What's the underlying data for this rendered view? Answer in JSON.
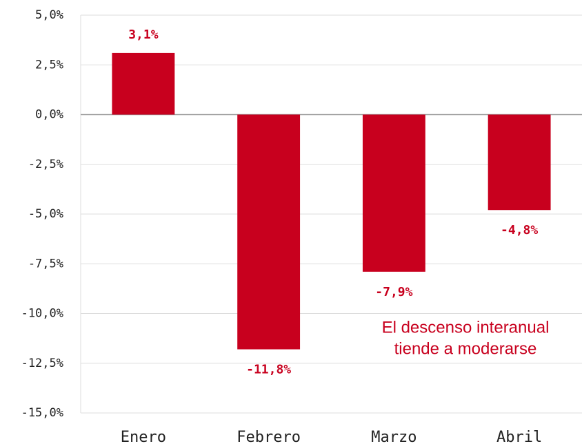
{
  "chart_data": {
    "type": "bar",
    "categories": [
      "Enero",
      "Febrero",
      "Marzo",
      "Abril"
    ],
    "values": [
      3.1,
      -11.8,
      -7.9,
      -4.8
    ],
    "value_labels": [
      "3,1%",
      "-11,8%",
      "-7,9%",
      "-4,8%"
    ],
    "color": "#c8001e",
    "ylim": [
      -15,
      5
    ],
    "yticks": [
      {
        "value": 5,
        "label": "5,0%"
      },
      {
        "value": 2.5,
        "label": "2,5%"
      },
      {
        "value": 0,
        "label": "0,0%"
      },
      {
        "value": -2.5,
        "label": "-2,5%"
      },
      {
        "value": -5,
        "label": "-5,0%"
      },
      {
        "value": -7.5,
        "label": "-7,5%"
      },
      {
        "value": -10,
        "label": "-10,0%"
      },
      {
        "value": -12.5,
        "label": "-12,5%"
      },
      {
        "value": -15,
        "label": "-15,0%"
      }
    ],
    "grid": true,
    "annotation": [
      "El descenso interanual",
      "tiende a moderarse"
    ]
  }
}
